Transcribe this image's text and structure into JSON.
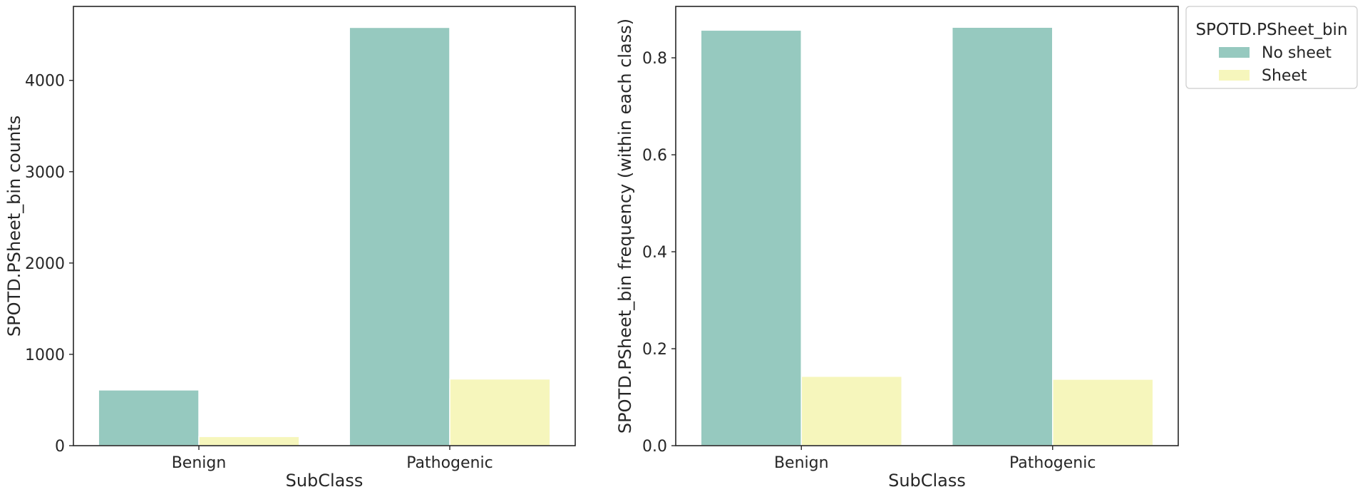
{
  "colors": {
    "no_sheet": "#96c9bf",
    "sheet": "#f6f6bc",
    "axis": "#262626"
  },
  "legend": {
    "title": "SPOTD.PSheet_bin",
    "entries": [
      "No sheet",
      "Sheet"
    ],
    "placement": "outside-top-right"
  },
  "chart_data": [
    {
      "type": "bar",
      "categories": [
        "Benign",
        "Pathogenic"
      ],
      "series": [
        {
          "name": "No sheet",
          "values": [
            610,
            4580
          ]
        },
        {
          "name": "Sheet",
          "values": [
            100,
            730
          ]
        }
      ],
      "xlabel": "SubClass",
      "ylabel": "SPOTD.PSheet_bin counts",
      "ylim": [
        0,
        4810
      ],
      "yticks": [
        0,
        1000,
        2000,
        3000,
        4000
      ],
      "ytick_labels": [
        "0",
        "1000",
        "2000",
        "3000",
        "4000"
      ],
      "grid": false
    },
    {
      "type": "bar",
      "categories": [
        "Benign",
        "Pathogenic"
      ],
      "series": [
        {
          "name": "No sheet",
          "values": [
            0.857,
            0.863
          ]
        },
        {
          "name": "Sheet",
          "values": [
            0.143,
            0.137
          ]
        }
      ],
      "xlabel": "SubClass",
      "ylabel": "SPOTD.PSheet_bin frequency (within each class)",
      "ylim": [
        0,
        0.906
      ],
      "yticks": [
        0.0,
        0.2,
        0.4,
        0.6,
        0.8
      ],
      "ytick_labels": [
        "0.0",
        "0.2",
        "0.4",
        "0.6",
        "0.8"
      ],
      "grid": false
    }
  ]
}
